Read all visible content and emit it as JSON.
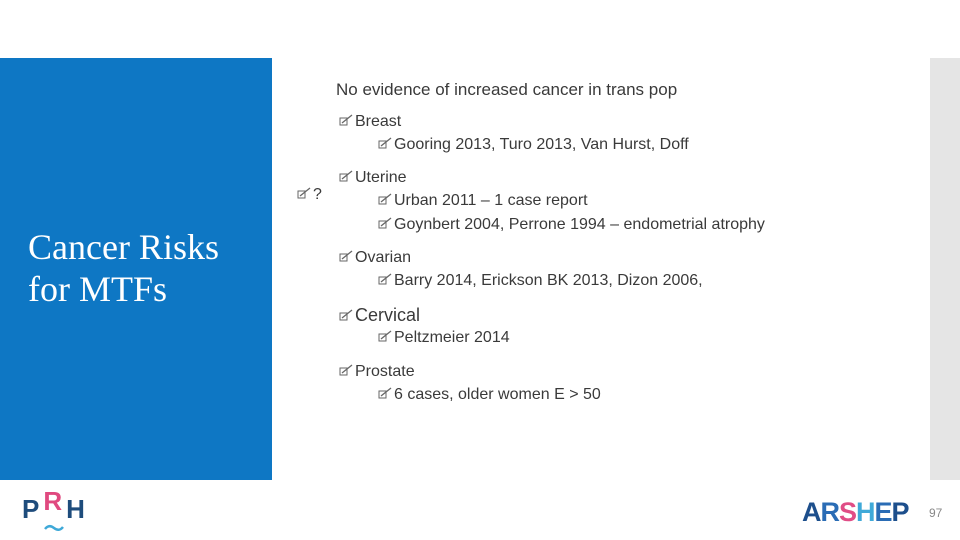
{
  "header": {
    "text": "No evidence of increased cancer in trans pop"
  },
  "sidebar": {
    "title": "Cancer Risks for MTFs"
  },
  "question_bullet": "?",
  "items": [
    {
      "label": "Breast",
      "subitems": [
        "Gooring 2013, Turo 2013, Van Hurst, Doff"
      ]
    },
    {
      "label": "Uterine",
      "subitems": [
        "Urban 2011 – 1 case report",
        "Goynbert 2004, Perrone 1994 – endometrial atrophy"
      ]
    },
    {
      "label": "Ovarian",
      "subitems": [
        "Barry 2014, Erickson BK 2013, Dizon 2006,"
      ]
    },
    {
      "label": "Cervical",
      "subitems": [
        "Peltzmeier 2014"
      ]
    },
    {
      "label": "Prostate",
      "subitems": [
        "6 cases, older women E > 50"
      ]
    }
  ],
  "footer": {
    "left_logo_letters": [
      "P",
      "R",
      "H"
    ],
    "right_logo_letters": [
      "A",
      "R",
      "S",
      "H",
      "E",
      "P"
    ],
    "page_number": "97"
  }
}
